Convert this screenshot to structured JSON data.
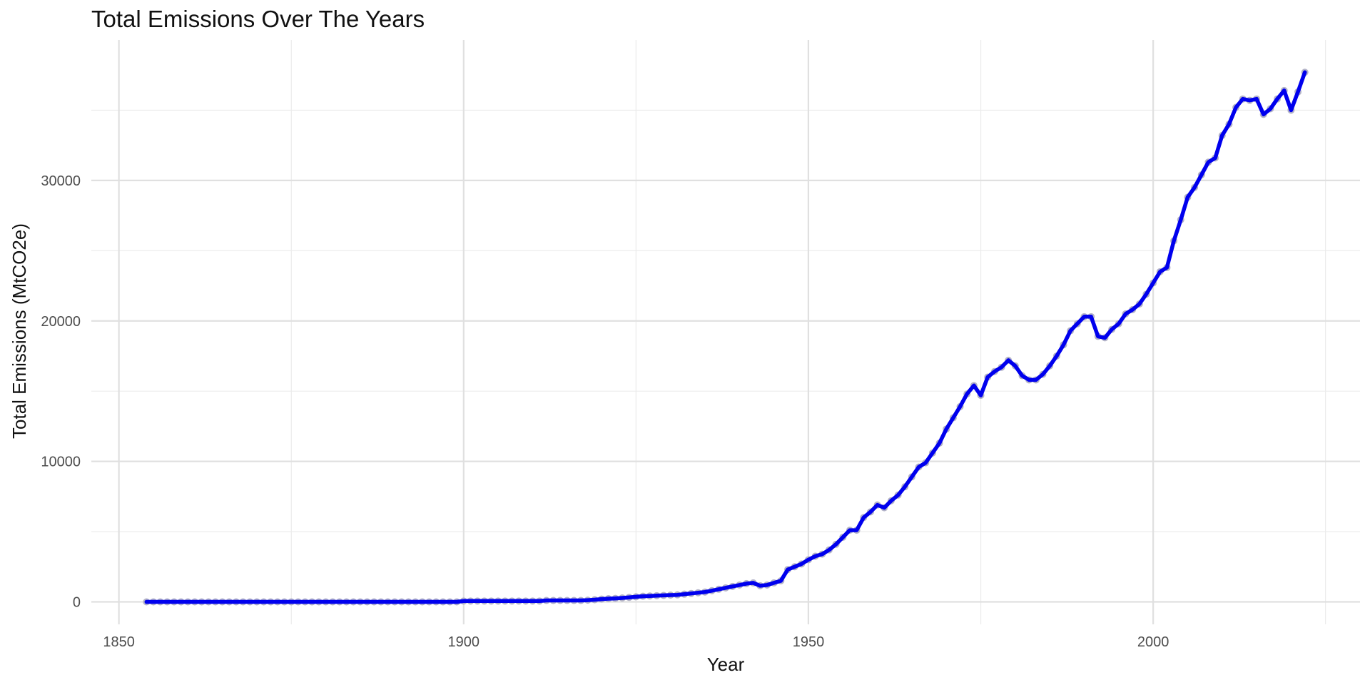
{
  "chart_data": {
    "type": "line",
    "title": "Total Emissions Over The Years",
    "xlabel": "Year",
    "ylabel": "Total Emissions (MtCO2e)",
    "xlim": [
      1846,
      2030
    ],
    "ylim": [
      -1600,
      40000
    ],
    "x_ticks": [
      1850,
      1900,
      1950,
      2000
    ],
    "y_ticks": [
      0,
      10000,
      20000,
      30000
    ],
    "grid": true,
    "line_color": "#0000ee",
    "point_color": "#b3b3c8",
    "series": [
      {
        "x": [
          1854,
          1855,
          1856,
          1857,
          1858,
          1859,
          1860,
          1861,
          1862,
          1863,
          1864,
          1865,
          1866,
          1867,
          1868,
          1869,
          1870,
          1871,
          1872,
          1873,
          1874,
          1875,
          1876,
          1877,
          1878,
          1879,
          1880,
          1881,
          1882,
          1883,
          1884,
          1885,
          1886,
          1887,
          1888,
          1889,
          1890,
          1891,
          1892,
          1893,
          1894,
          1895,
          1896,
          1897,
          1898,
          1899,
          1900,
          1901,
          1902,
          1903,
          1904,
          1905,
          1906,
          1907,
          1908,
          1909,
          1910,
          1911,
          1912,
          1913,
          1914,
          1915,
          1916,
          1917,
          1918,
          1919,
          1920,
          1921,
          1922,
          1923,
          1924,
          1925,
          1926,
          1927,
          1928,
          1929,
          1930,
          1931,
          1932,
          1933,
          1934,
          1935,
          1936,
          1937,
          1938,
          1939,
          1940,
          1941,
          1942,
          1943,
          1944,
          1945,
          1946,
          1947,
          1948,
          1949,
          1950,
          1951,
          1952,
          1953,
          1954,
          1955,
          1956,
          1957,
          1958,
          1959,
          1960,
          1961,
          1962,
          1963,
          1964,
          1965,
          1966,
          1967,
          1968,
          1969,
          1970,
          1971,
          1972,
          1973,
          1974,
          1975,
          1976,
          1977,
          1978,
          1979,
          1980,
          1981,
          1982,
          1983,
          1984,
          1985,
          1986,
          1987,
          1988,
          1989,
          1990,
          1991,
          1992,
          1993,
          1994,
          1995,
          1996,
          1997,
          1998,
          1999,
          2000,
          2001,
          2002,
          2003,
          2004,
          2005,
          2006,
          2007,
          2008,
          2009,
          2010,
          2011,
          2012,
          2013,
          2014,
          2015,
          2016,
          2017,
          2018,
          2019,
          2020,
          2021,
          2022
        ],
        "y": [
          0,
          0,
          0,
          0,
          0,
          0,
          0,
          0,
          0,
          0,
          0,
          0,
          0,
          0,
          0,
          0,
          0,
          0,
          0,
          0,
          0,
          0,
          0,
          0,
          0,
          0,
          0,
          0,
          0,
          0,
          0,
          0,
          0,
          0,
          0,
          0,
          0,
          0,
          0,
          0,
          0,
          0,
          0,
          0,
          0,
          0,
          60,
          60,
          60,
          60,
          60,
          60,
          60,
          60,
          60,
          60,
          60,
          60,
          100,
          100,
          100,
          100,
          100,
          100,
          120,
          150,
          200,
          230,
          250,
          280,
          320,
          360,
          400,
          420,
          440,
          460,
          480,
          500,
          550,
          600,
          650,
          700,
          800,
          900,
          1000,
          1100,
          1200,
          1300,
          1350,
          1150,
          1200,
          1350,
          1500,
          2300,
          2500,
          2700,
          3000,
          3250,
          3400,
          3700,
          4100,
          4600,
          5100,
          5100,
          6000,
          6400,
          6900,
          6700,
          7200,
          7600,
          8200,
          8900,
          9600,
          9900,
          10600,
          11300,
          12300,
          13100,
          13900,
          14800,
          15400,
          14700,
          16000,
          16400,
          16700,
          17200,
          16800,
          16100,
          15800,
          15800,
          16200,
          16800,
          17500,
          18300,
          19300,
          19800,
          20300,
          20300,
          18900,
          18800,
          19400,
          19800,
          20500,
          20800,
          21200,
          21900,
          22700,
          23500,
          23800,
          25700,
          27200,
          28800,
          29500,
          30400,
          31300,
          31600,
          33200,
          34000,
          35200,
          35800,
          35700,
          35800,
          34700,
          35100,
          35800,
          36400,
          35000,
          36300,
          37700
        ]
      }
    ]
  }
}
